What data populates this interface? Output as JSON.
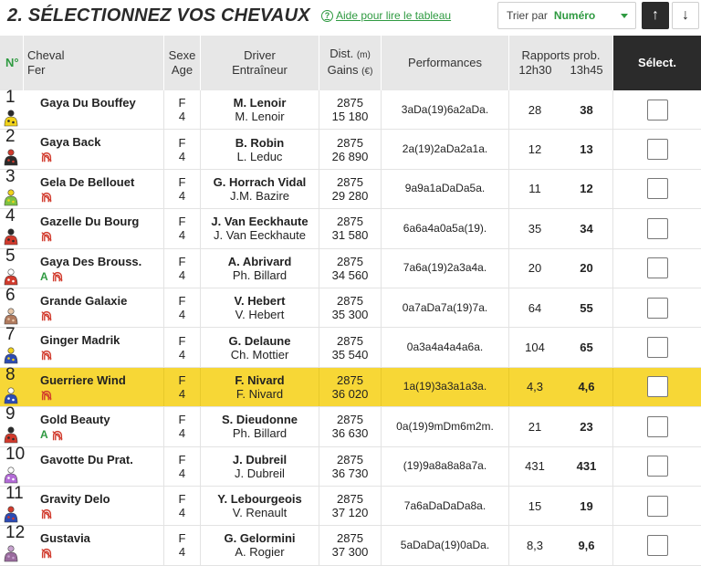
{
  "header": {
    "title": "2. SÉLECTIONNEZ VOS CHEVAUX",
    "help_icon": "?",
    "help_label": "Aide pour lire le tableau",
    "sort_label": "Trier par",
    "sort_value": "Numéro",
    "sort_up_icon": "↑",
    "sort_down_icon": "↓"
  },
  "columns": {
    "num": "N°",
    "cheval": "Cheval",
    "fer": "Fer",
    "sexe": "Sexe",
    "age": "Age",
    "driver": "Driver",
    "entraineur": "Entraîneur",
    "dist": "Dist.",
    "dist_unit": "(m)",
    "gains": "Gains",
    "gains_unit": "(€)",
    "performances": "Performances",
    "rapports": "Rapports prob.",
    "time1": "12h30",
    "time2": "13h45",
    "select": "Sélect."
  },
  "colors": {
    "accent": "#2f9a41",
    "highlight": "#f7d736",
    "header_bg": "#e7e7e7",
    "select_bg": "#2b2b2b"
  },
  "horses": [
    {
      "num": "1",
      "name": "Gaya Du Bouffey",
      "flag": "",
      "shoe": false,
      "sex": "F",
      "age": "4",
      "driver": "M. Lenoir",
      "trainer": "M. Lenoir",
      "dist": "2875",
      "gains": "15 180",
      "perf": "3aDa(19)6a2aDa.",
      "odds1": "28",
      "odds2": "38",
      "silks": [
        "#f2d31a",
        "#2a2a2a"
      ],
      "highlighted": false
    },
    {
      "num": "2",
      "name": "Gaya Back",
      "flag": "",
      "shoe": true,
      "sex": "F",
      "age": "4",
      "driver": "B. Robin",
      "trainer": "L. Leduc",
      "dist": "2875",
      "gains": "26 890",
      "perf": "2a(19)2aDa2a1a.",
      "odds1": "12",
      "odds2": "13",
      "silks": [
        "#2a2a2a",
        "#d13a2c"
      ],
      "highlighted": false
    },
    {
      "num": "3",
      "name": "Gela De Bellouet",
      "flag": "",
      "shoe": true,
      "sex": "F",
      "age": "4",
      "driver": "G. Horrach Vidal",
      "trainer": "J.M. Bazire",
      "dist": "2875",
      "gains": "29 280",
      "perf": "9a9a1aDaDa5a.",
      "odds1": "11",
      "odds2": "12",
      "silks": [
        "#7dc242",
        "#f2d31a"
      ],
      "highlighted": false
    },
    {
      "num": "4",
      "name": "Gazelle Du Bourg",
      "flag": "",
      "shoe": true,
      "sex": "F",
      "age": "4",
      "driver": "J. Van Eeckhaute",
      "trainer": "J. Van Eeckhaute",
      "dist": "2875",
      "gains": "31 580",
      "perf": "6a6a4a0a5a(19).",
      "odds1": "35",
      "odds2": "34",
      "silks": [
        "#d13a2c",
        "#2a2a2a"
      ],
      "highlighted": false
    },
    {
      "num": "5",
      "name": "Gaya Des Brouss.",
      "flag": "A",
      "shoe": true,
      "sex": "F",
      "age": "4",
      "driver": "A. Abrivard",
      "trainer": "Ph. Billard",
      "dist": "2875",
      "gains": "34 560",
      "perf": "7a6a(19)2a3a4a.",
      "odds1": "20",
      "odds2": "20",
      "silks": [
        "#d13a2c",
        "#ffffff"
      ],
      "highlighted": false
    },
    {
      "num": "6",
      "name": "Grande Galaxie",
      "flag": "",
      "shoe": true,
      "sex": "F",
      "age": "4",
      "driver": "V. Hebert",
      "trainer": "V. Hebert",
      "dist": "2875",
      "gains": "35 300",
      "perf": "0a7aDa7a(19)7a.",
      "odds1": "64",
      "odds2": "55",
      "silks": [
        "#b07a5e",
        "#e8c7a8"
      ],
      "highlighted": false
    },
    {
      "num": "7",
      "name": "Ginger Madrik",
      "flag": "",
      "shoe": true,
      "sex": "F",
      "age": "4",
      "driver": "G. Delaune",
      "trainer": "Ch. Mottier",
      "dist": "2875",
      "gains": "35 540",
      "perf": "0a3a4a4a4a6a.",
      "odds1": "104",
      "odds2": "65",
      "silks": [
        "#2c4bb3",
        "#f2d31a"
      ],
      "highlighted": false
    },
    {
      "num": "8",
      "name": "Guerriere Wind",
      "flag": "",
      "shoe": true,
      "sex": "F",
      "age": "4",
      "driver": "F. Nivard",
      "trainer": "F. Nivard",
      "dist": "2875",
      "gains": "36 020",
      "perf": "1a(19)3a3a1a3a.",
      "odds1": "4,3",
      "odds2": "4,6",
      "silks": [
        "#2c4bb3",
        "#ffffff"
      ],
      "highlighted": true
    },
    {
      "num": "9",
      "name": "Gold Beauty",
      "flag": "A",
      "shoe": true,
      "sex": "F",
      "age": "4",
      "driver": "S. Dieudonne",
      "trainer": "Ph. Billard",
      "dist": "2875",
      "gains": "36 630",
      "perf": "0a(19)9mDm6m2m.",
      "odds1": "21",
      "odds2": "23",
      "silks": [
        "#d13a2c",
        "#2a2a2a"
      ],
      "highlighted": false
    },
    {
      "num": "10",
      "name": "Gavotte Du Prat.",
      "flag": "",
      "shoe": false,
      "sex": "F",
      "age": "4",
      "driver": "J. Dubreil",
      "trainer": "J. Dubreil",
      "dist": "2875",
      "gains": "36 730",
      "perf": "(19)9a8a8a8a7a.",
      "odds1": "431",
      "odds2": "431",
      "silks": [
        "#b36bd6",
        "#ffffff"
      ],
      "highlighted": false
    },
    {
      "num": "11",
      "name": "Gravity Delo",
      "flag": "",
      "shoe": true,
      "sex": "F",
      "age": "4",
      "driver": "Y. Lebourgeois",
      "trainer": "V. Renault",
      "dist": "2875",
      "gains": "37 120",
      "perf": "7a6aDaDaDa8a.",
      "odds1": "15",
      "odds2": "19",
      "silks": [
        "#2c4bb3",
        "#d13a2c"
      ],
      "highlighted": false
    },
    {
      "num": "12",
      "name": "Gustavia",
      "flag": "",
      "shoe": true,
      "sex": "F",
      "age": "4",
      "driver": "G. Gelormini",
      "trainer": "A. Rogier",
      "dist": "2875",
      "gains": "37 300",
      "perf": "5aDaDa(19)0aDa.",
      "odds1": "8,3",
      "odds2": "9,6",
      "silks": [
        "#9a6b9e",
        "#c7a3cf"
      ],
      "highlighted": false
    }
  ]
}
